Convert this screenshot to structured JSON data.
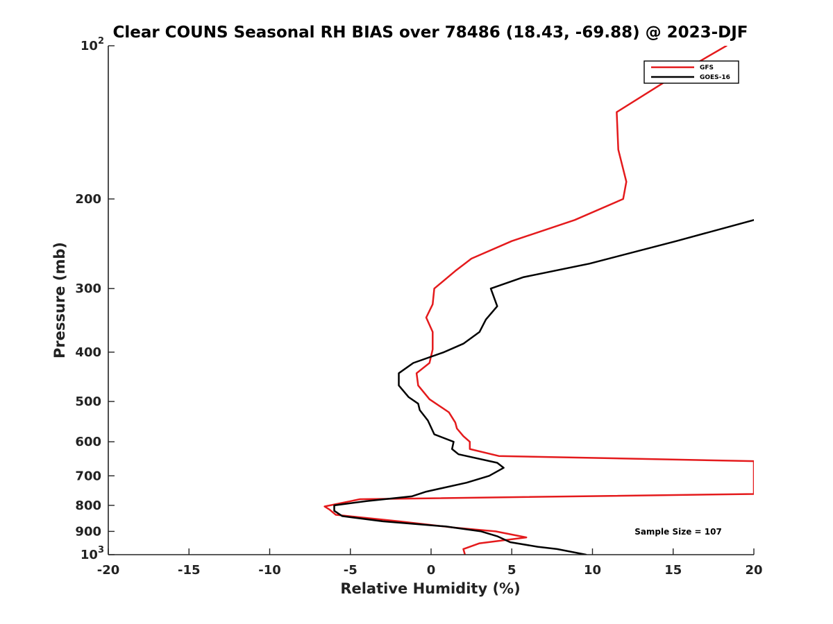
{
  "chart_data": {
    "type": "line",
    "title": "Clear COUNS Seasonal RH BIAS over 78486 (18.43, -69.88) @ 2023-DJF",
    "xlabel": "Relative Humidity (%)",
    "ylabel": "Pressure (mb)",
    "xlim": [
      -20,
      20
    ],
    "ylim": [
      100,
      1000
    ],
    "y_scale": "log",
    "y_reversed": true,
    "grid": false,
    "legend_placement": "top-right",
    "x_ticks": [
      "-20",
      "-15",
      "-10",
      "-5",
      "0",
      "5",
      "10",
      "15",
      "20"
    ],
    "y_ticks": [
      {
        "value": 100,
        "base": "10",
        "exp": "2"
      },
      {
        "value": 200,
        "base": "200",
        "exp": ""
      },
      {
        "value": 300,
        "base": "300",
        "exp": ""
      },
      {
        "value": 400,
        "base": "400",
        "exp": ""
      },
      {
        "value": 500,
        "base": "500",
        "exp": ""
      },
      {
        "value": 600,
        "base": "600",
        "exp": ""
      },
      {
        "value": 700,
        "base": "700",
        "exp": ""
      },
      {
        "value": 800,
        "base": "800",
        "exp": ""
      },
      {
        "value": 900,
        "base": "900",
        "exp": ""
      },
      {
        "value": 1000,
        "base": "10",
        "exp": "3"
      }
    ],
    "annotation": "Sample Size = 107",
    "series": [
      {
        "name": "GFS",
        "color": "#e41a1c",
        "points": [
          [
            18.3,
            100
          ],
          [
            15.0,
            115
          ],
          [
            11.5,
            135
          ],
          [
            11.6,
            160
          ],
          [
            12.1,
            185
          ],
          [
            11.9,
            200
          ],
          [
            8.9,
            220
          ],
          [
            5.0,
            242
          ],
          [
            2.5,
            262
          ],
          [
            1.5,
            277
          ],
          [
            0.2,
            300
          ],
          [
            0.1,
            322
          ],
          [
            -0.3,
            342
          ],
          [
            0.1,
            365
          ],
          [
            0.1,
            395
          ],
          [
            -0.1,
            420
          ],
          [
            -0.9,
            440
          ],
          [
            -0.8,
            465
          ],
          [
            -0.1,
            495
          ],
          [
            1.1,
            525
          ],
          [
            1.5,
            550
          ],
          [
            1.6,
            565
          ],
          [
            2.0,
            585
          ],
          [
            2.4,
            600
          ],
          [
            2.4,
            620
          ],
          [
            4.2,
            640
          ],
          [
            20.0,
            655
          ],
          [
            20.0,
            760
          ],
          [
            -4.4,
            778
          ],
          [
            -6.6,
            804
          ],
          [
            -6.3,
            815
          ],
          [
            -5.9,
            835
          ],
          [
            -2.0,
            860
          ],
          [
            1.5,
            885
          ],
          [
            4.0,
            900
          ],
          [
            5.9,
            925
          ],
          [
            3.0,
            950
          ],
          [
            2.0,
            975
          ],
          [
            2.1,
            1000
          ]
        ]
      },
      {
        "name": "GOES-16",
        "color": "#000000",
        "points": [
          [
            20.0,
            220
          ],
          [
            15.2,
            242
          ],
          [
            9.8,
            268
          ],
          [
            5.7,
            285
          ],
          [
            3.7,
            300
          ],
          [
            4.1,
            325
          ],
          [
            3.4,
            345
          ],
          [
            3.0,
            365
          ],
          [
            2.0,
            385
          ],
          [
            0.8,
            400
          ],
          [
            -1.1,
            420
          ],
          [
            -2.0,
            440
          ],
          [
            -2.0,
            465
          ],
          [
            -1.4,
            490
          ],
          [
            -0.8,
            505
          ],
          [
            -0.7,
            520
          ],
          [
            -0.2,
            545
          ],
          [
            0.2,
            580
          ],
          [
            1.4,
            600
          ],
          [
            1.3,
            620
          ],
          [
            1.7,
            635
          ],
          [
            4.1,
            660
          ],
          [
            4.5,
            675
          ],
          [
            3.6,
            700
          ],
          [
            2.2,
            722
          ],
          [
            -0.3,
            752
          ],
          [
            -1.2,
            768
          ],
          [
            -4.0,
            785
          ],
          [
            -6.0,
            800
          ],
          [
            -6.0,
            820
          ],
          [
            -5.5,
            840
          ],
          [
            -3.0,
            860
          ],
          [
            0.9,
            880
          ],
          [
            3.1,
            900
          ],
          [
            4.1,
            920
          ],
          [
            4.9,
            945
          ],
          [
            6.6,
            965
          ],
          [
            7.8,
            975
          ],
          [
            9.6,
            1000
          ]
        ]
      }
    ]
  }
}
